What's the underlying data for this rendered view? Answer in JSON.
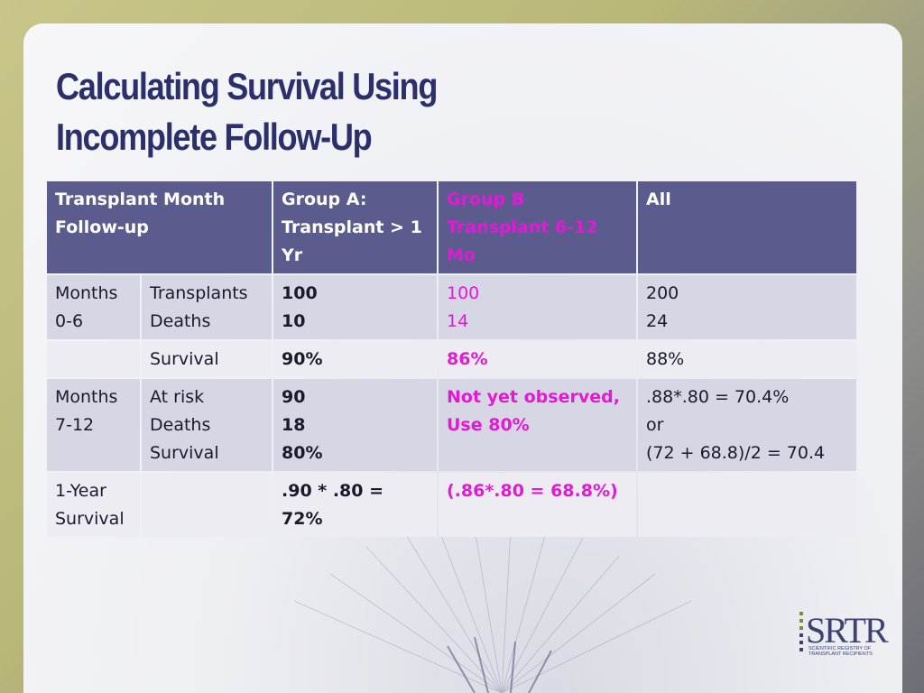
{
  "title": {
    "line1": "Calculating Survival Using",
    "line2": "Incomplete Follow-Up"
  },
  "table": {
    "header": {
      "c1_l1": "Transplant Month",
      "c1_l2": "Follow-up",
      "c2_l1": "Group A:",
      "c2_l2": "Transplant > 1 Yr",
      "c3_l1": "Group B",
      "c3_l2": "Transplant 6-12 Mo",
      "c4": "All"
    },
    "row1": {
      "c1_l1": "Months",
      "c1_l2": "0-6",
      "c2_l1": "Transplants",
      "c2_l2": "Deaths",
      "c3_l1": "100",
      "c3_l2": "10",
      "c4_l1": "100",
      "c4_l2": "14",
      "c5_l1": "200",
      "c5_l2": "24"
    },
    "row2": {
      "c2": "Survival",
      "c3": "90%",
      "c4": "86%",
      "c5": "88%"
    },
    "row3": {
      "c1_l1": "Months",
      "c1_l2": "7-12",
      "c2_l1": "At risk",
      "c2_l2": "Deaths",
      "c2_l3": "Survival",
      "c3_l1": "90",
      "c3_l2": "18",
      "c3_l3": "80%",
      "c4_l1": "Not yet observed,",
      "c4_l2": "Use 80%",
      "c5_l1": ".88*.80 = 70.4%",
      "c5_l2": "or",
      "c5_l3": "(72 + 68.8)/2 = 70.4"
    },
    "row4": {
      "c1_l1": "1-Year",
      "c1_l2": "Survival",
      "c3": ".90 * .80 = 72%",
      "c4": "(.86*.80 = 68.8%)"
    }
  },
  "logo": {
    "text": "SRTR",
    "sub1": "SCIENTIFIC REGISTRY OF",
    "sub2": "TRANSPLANT RECIPIENTS"
  },
  "colors": {
    "title": "#2b2f6c",
    "header_bg": "#5c5b8e",
    "row_odd": "#d6d6e4",
    "row_even": "#ececf2",
    "highlight": "#e21ad6"
  }
}
